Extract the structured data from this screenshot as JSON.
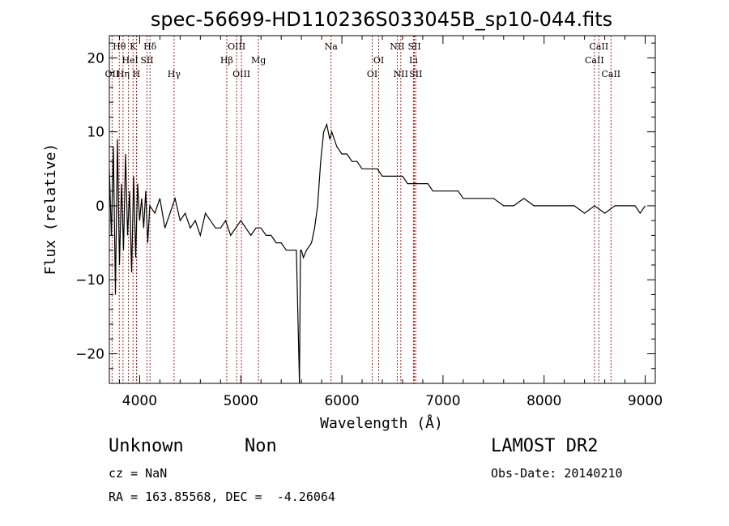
{
  "footer": {
    "object_class": "Unknown",
    "subclass": "Non",
    "survey": "LAMOST DR2",
    "redshift": "cz = NaN",
    "obs_date": "Obs-Date: 20140210",
    "coords": "RA = 163.85568, DEC =  -4.26064"
  },
  "chart_data": {
    "type": "line",
    "title": "spec-56699-HD110236S033045B_sp10-044.fits",
    "xlabel": "Wavelength (Å)",
    "ylabel": "Flux (relative)",
    "xlim": [
      3700,
      9100
    ],
    "ylim": [
      -24,
      23
    ],
    "x_ticks": [
      4000,
      5000,
      6000,
      7000,
      8000,
      9000
    ],
    "y_ticks": [
      -20,
      -10,
      0,
      10,
      20
    ],
    "y_tick_labels": [
      "−20",
      "−10",
      "0",
      "10",
      "20"
    ],
    "grid": false,
    "line_color": "#000000",
    "marker_color": "#b22222",
    "spectral_lines": [
      {
        "label": "Hθ",
        "wavelength": 3798,
        "row": 0
      },
      {
        "label": "K",
        "wavelength": 3934,
        "row": 0
      },
      {
        "label": "Hδ",
        "wavelength": 4102,
        "row": 0
      },
      {
        "label": "OIII",
        "wavelength": 4959,
        "row": 0
      },
      {
        "label": "Na",
        "wavelength": 5893,
        "row": 0
      },
      {
        "label": "NII",
        "wavelength": 6548,
        "row": 0
      },
      {
        "label": "SII",
        "wavelength": 6717,
        "row": 0
      },
      {
        "label": "CaII",
        "wavelength": 8542,
        "row": 0
      },
      {
        "label": "He",
        "wavelength": 3889,
        "row": 1
      },
      {
        "label": "I",
        "wavelength": 3970,
        "row": 1
      },
      {
        "label": "SII",
        "wavelength": 4072,
        "row": 1
      },
      {
        "label": "Hβ",
        "wavelength": 4861,
        "row": 1
      },
      {
        "label": "Mg",
        "wavelength": 5175,
        "row": 1
      },
      {
        "label": "OI",
        "wavelength": 6364,
        "row": 1
      },
      {
        "label": "Li",
        "wavelength": 6708,
        "row": 1
      },
      {
        "label": "CaII",
        "wavelength": 8498,
        "row": 1
      },
      {
        "label": "OII",
        "wavelength": 3727,
        "row": 2
      },
      {
        "label": "Hη",
        "wavelength": 3835,
        "row": 2
      },
      {
        "label": "H",
        "wavelength": 3968,
        "row": 2
      },
      {
        "label": "Hγ",
        "wavelength": 4340,
        "row": 2
      },
      {
        "label": "OIII",
        "wavelength": 5007,
        "row": 2
      },
      {
        "label": "OI",
        "wavelength": 6300,
        "row": 2
      },
      {
        "label": "NII",
        "wavelength": 6583,
        "row": 2
      },
      {
        "label": "SII",
        "wavelength": 6731,
        "row": 2
      },
      {
        "label": "CaII",
        "wavelength": 8662,
        "row": 2
      }
    ],
    "series": [
      {
        "x": [
          3700,
          3720,
          3740,
          3760,
          3780,
          3800,
          3820,
          3840,
          3860,
          3880,
          3900,
          3920,
          3940,
          3960,
          3980,
          4000,
          4020,
          4040,
          4060,
          4080,
          4100,
          4150,
          4200,
          4250,
          4300,
          4350,
          4400,
          4450,
          4500,
          4550,
          4600,
          4650,
          4700,
          4750,
          4800,
          4850,
          4900,
          4950,
          5000,
          5050,
          5100,
          5150,
          5200,
          5250,
          5300,
          5350,
          5400,
          5450,
          5500,
          5550,
          5580,
          5590,
          5600,
          5620,
          5650,
          5700,
          5730,
          5760,
          5790,
          5820,
          5850,
          5880,
          5900,
          5950,
          6000,
          6050,
          6100,
          6150,
          6200,
          6250,
          6300,
          6350,
          6400,
          6450,
          6500,
          6550,
          6600,
          6650,
          6700,
          6750,
          6800,
          6850,
          6900,
          6950,
          7000,
          7050,
          7100,
          7150,
          7200,
          7300,
          7400,
          7500,
          7600,
          7700,
          7800,
          7900,
          8000,
          8100,
          8200,
          8300,
          8400,
          8500,
          8600,
          8700,
          8800,
          8900,
          8950,
          9000
        ],
        "y": [
          5,
          -4,
          8,
          -12,
          9,
          -8,
          3,
          -6,
          7,
          -4,
          2,
          -9,
          4,
          -7,
          3,
          -2,
          1,
          -3,
          2,
          -5,
          0,
          -1,
          1,
          -3,
          -1,
          1,
          -2,
          -1,
          -3,
          -2,
          -4,
          -1,
          -2,
          -3,
          -3,
          -2,
          -4,
          -3,
          -2,
          -3,
          -4,
          -3,
          -3,
          -4,
          -4,
          -5,
          -5,
          -6,
          -6,
          -6,
          -24,
          -6,
          -6,
          -7,
          -6,
          -5,
          -3,
          0,
          6,
          10,
          11,
          9,
          10,
          8,
          7,
          7,
          6,
          6,
          5,
          5,
          5,
          5,
          4,
          4,
          4,
          4,
          4,
          3,
          3,
          3,
          3,
          3,
          2,
          2,
          2,
          2,
          2,
          2,
          1,
          1,
          1,
          1,
          0,
          0,
          1,
          0,
          0,
          0,
          0,
          0,
          -1,
          0,
          -1,
          0,
          0,
          0,
          -1,
          0
        ]
      }
    ]
  }
}
